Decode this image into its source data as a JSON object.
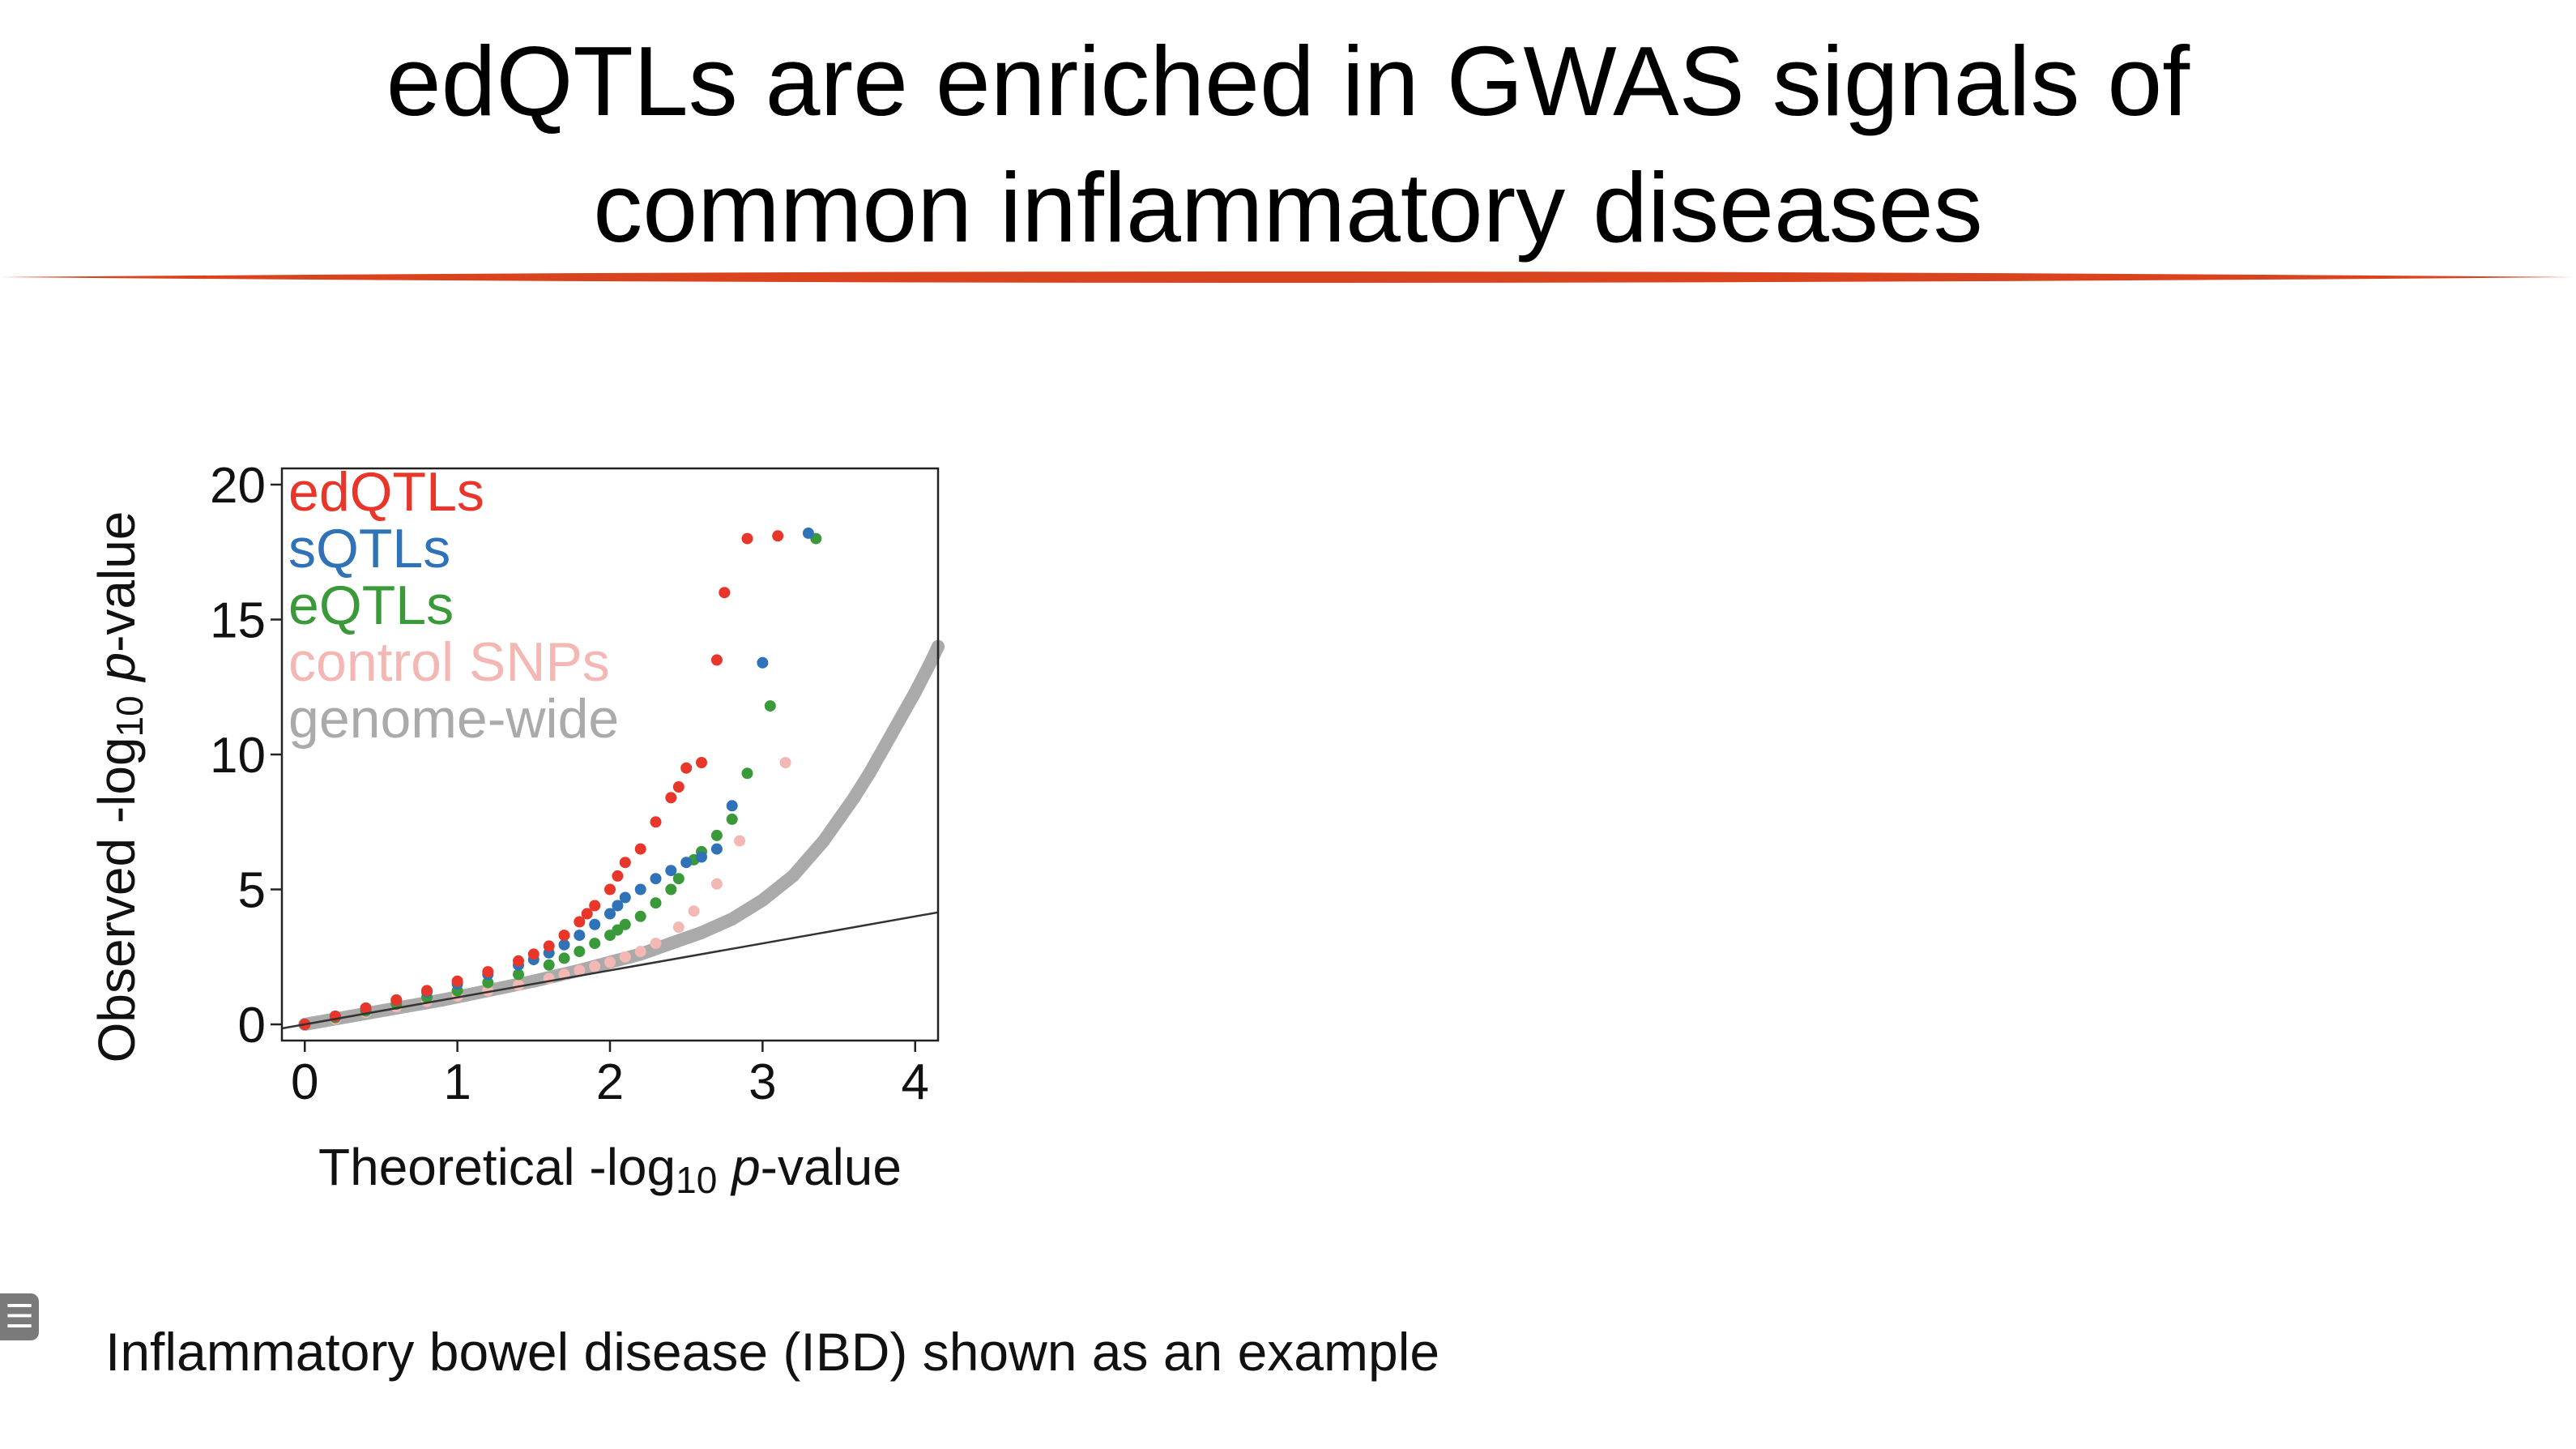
{
  "slide": {
    "title_lines": [
      "edQTLs are enriched in GWAS signals of",
      "common inflammatory diseases"
    ],
    "caption": "Inflammatory bowel disease (IBD) shown as an example",
    "rule_color": "#d9431e",
    "menu_icon": "list-icon",
    "menu_glyph": "☰"
  },
  "chart_data": {
    "type": "scatter",
    "title": "",
    "xlabel": "Theoretical -log10 p-value",
    "ylabel": "Observed -log10 p-value",
    "xlabel_parts": {
      "pre": "Theoretical -log",
      "sub": "10",
      "italic": "p",
      "post": "-value"
    },
    "ylabel_parts": {
      "pre": "Observed -log",
      "sub": "10",
      "italic": "p",
      "post": "-value"
    },
    "xlim": [
      -0.15,
      4.15
    ],
    "ylim": [
      -0.6,
      20.6
    ],
    "xticks": [
      0,
      1,
      2,
      3,
      4
    ],
    "yticks": [
      0,
      5,
      10,
      15,
      20
    ],
    "grid": false,
    "legend_position": "top-left",
    "reference_line": {
      "x": [
        -0.15,
        4.15
      ],
      "y": [
        -0.15,
        4.15
      ],
      "color": "#333333"
    },
    "series": [
      {
        "name": "genome-wide",
        "color": "#aaaaaa",
        "x": [
          0.0,
          0.3,
          0.6,
          0.9,
          1.2,
          1.5,
          1.8,
          2.0,
          2.2,
          2.4,
          2.6,
          2.8,
          3.0,
          3.2,
          3.4,
          3.5,
          3.6,
          3.7,
          3.8,
          3.9,
          4.0,
          4.1,
          4.15
        ],
        "y": [
          0.0,
          0.3,
          0.6,
          0.9,
          1.25,
          1.6,
          2.0,
          2.3,
          2.6,
          3.0,
          3.4,
          3.9,
          4.6,
          5.5,
          6.8,
          7.6,
          8.4,
          9.3,
          10.3,
          11.3,
          12.3,
          13.4,
          14.0
        ],
        "trail": true
      },
      {
        "name": "control SNPs",
        "color": "#f4b8b4",
        "x": [
          0.0,
          0.2,
          0.4,
          0.6,
          0.8,
          1.0,
          1.2,
          1.4,
          1.6,
          1.7,
          1.8,
          1.9,
          2.0,
          2.1,
          2.2,
          2.3,
          2.45,
          2.55,
          2.7,
          2.85,
          3.15
        ],
        "y": [
          0.0,
          0.2,
          0.45,
          0.65,
          0.85,
          1.05,
          1.25,
          1.45,
          1.7,
          1.85,
          2.0,
          2.15,
          2.3,
          2.5,
          2.7,
          3.0,
          3.6,
          4.2,
          5.2,
          6.8,
          9.7
        ]
      },
      {
        "name": "eQTLs",
        "color": "#3a9a3a",
        "x": [
          0.0,
          0.2,
          0.4,
          0.6,
          0.8,
          1.0,
          1.2,
          1.4,
          1.6,
          1.7,
          1.8,
          1.9,
          2.0,
          2.05,
          2.1,
          2.2,
          2.3,
          2.4,
          2.45,
          2.55,
          2.6,
          2.7,
          2.8,
          2.9,
          3.05,
          3.35
        ],
        "y": [
          0.0,
          0.25,
          0.5,
          0.75,
          1.0,
          1.25,
          1.55,
          1.85,
          2.2,
          2.45,
          2.7,
          3.0,
          3.3,
          3.5,
          3.7,
          4.0,
          4.5,
          5.0,
          5.4,
          6.1,
          6.4,
          7.0,
          7.6,
          9.3,
          11.8,
          18.0
        ]
      },
      {
        "name": "sQTLs",
        "color": "#2f72b8",
        "x": [
          0.0,
          0.2,
          0.4,
          0.6,
          0.8,
          1.0,
          1.2,
          1.4,
          1.5,
          1.6,
          1.7,
          1.8,
          1.9,
          2.0,
          2.05,
          2.1,
          2.2,
          2.3,
          2.4,
          2.5,
          2.6,
          2.7,
          2.8,
          3.0,
          3.3
        ],
        "y": [
          0.0,
          0.3,
          0.6,
          0.9,
          1.2,
          1.5,
          1.85,
          2.2,
          2.4,
          2.65,
          2.95,
          3.3,
          3.7,
          4.1,
          4.4,
          4.7,
          5.0,
          5.4,
          5.7,
          6.0,
          6.2,
          6.5,
          8.1,
          13.4,
          18.2
        ]
      },
      {
        "name": "edQTLs",
        "color": "#e8372a",
        "x": [
          0.0,
          0.2,
          0.4,
          0.6,
          0.8,
          1.0,
          1.2,
          1.4,
          1.5,
          1.6,
          1.7,
          1.8,
          1.85,
          1.9,
          2.0,
          2.05,
          2.1,
          2.2,
          2.3,
          2.4,
          2.45,
          2.5,
          2.6,
          2.7,
          2.75,
          2.9,
          3.1
        ],
        "y": [
          0.0,
          0.3,
          0.6,
          0.9,
          1.25,
          1.6,
          1.95,
          2.35,
          2.6,
          2.9,
          3.3,
          3.8,
          4.1,
          4.4,
          5.0,
          5.5,
          6.0,
          6.5,
          7.5,
          8.4,
          8.8,
          9.5,
          9.7,
          13.5,
          16.0,
          18.0,
          18.1
        ]
      }
    ]
  }
}
